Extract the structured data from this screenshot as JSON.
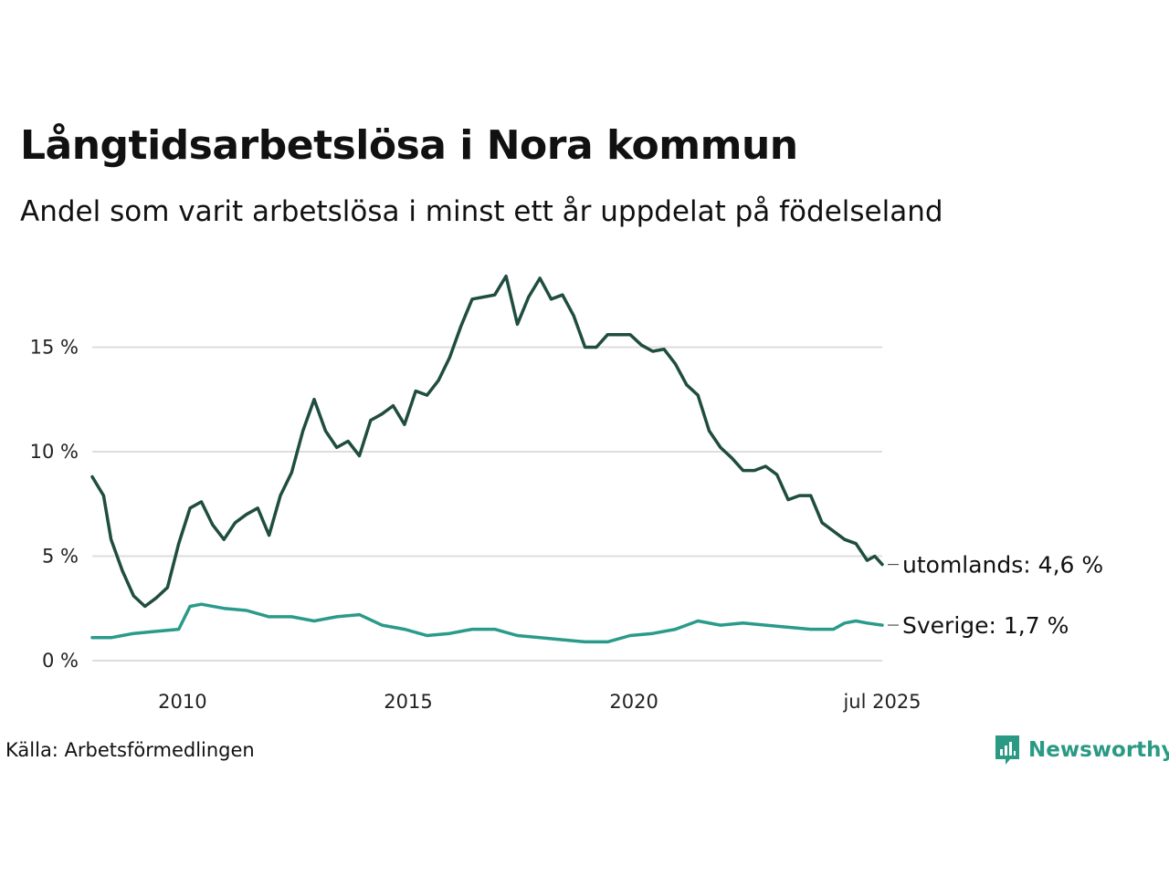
{
  "title": "Långtidsarbetslösa i Nora kommun",
  "subtitle": "Andel som varit arbetslösa i minst ett år uppdelat på födelseland",
  "source": "Källa: Arbetsförmedlingen",
  "brand": {
    "name": "Newsworthy",
    "icon": "newsworthy-logo-icon",
    "color": "#2a9a84"
  },
  "chart_data": {
    "type": "line",
    "x_start": "2008-01",
    "x_end": "2025-07",
    "x_ticks": [
      {
        "value": "2010-01",
        "label": "2010"
      },
      {
        "value": "2015-01",
        "label": "2015"
      },
      {
        "value": "2020-01",
        "label": "2020"
      },
      {
        "value": "2025-07",
        "label": "jul 2025"
      }
    ],
    "y_ticks": [
      {
        "value": 0,
        "label": "0 %"
      },
      {
        "value": 5,
        "label": "5 %"
      },
      {
        "value": 10,
        "label": "10 %"
      },
      {
        "value": 15,
        "label": "15 %"
      }
    ],
    "ylim": [
      0,
      18.6
    ],
    "grid": true,
    "series": [
      {
        "name": "utomlands",
        "end_label": "utomlands: 4,6 %",
        "color": "#1f4d40",
        "points": [
          [
            "2008-01",
            8.8
          ],
          [
            "2008-04",
            7.9
          ],
          [
            "2008-06",
            5.8
          ],
          [
            "2008-09",
            4.3
          ],
          [
            "2008-12",
            3.1
          ],
          [
            "2009-03",
            2.6
          ],
          [
            "2009-06",
            3.0
          ],
          [
            "2009-09",
            3.5
          ],
          [
            "2009-12",
            5.6
          ],
          [
            "2010-03",
            7.3
          ],
          [
            "2010-06",
            7.6
          ],
          [
            "2010-09",
            6.5
          ],
          [
            "2010-12",
            5.8
          ],
          [
            "2011-03",
            6.6
          ],
          [
            "2011-06",
            7.0
          ],
          [
            "2011-09",
            7.3
          ],
          [
            "2011-12",
            6.0
          ],
          [
            "2012-03",
            7.9
          ],
          [
            "2012-06",
            9.0
          ],
          [
            "2012-09",
            11.0
          ],
          [
            "2012-12",
            12.5
          ],
          [
            "2013-03",
            11.0
          ],
          [
            "2013-06",
            10.2
          ],
          [
            "2013-09",
            10.5
          ],
          [
            "2013-12",
            9.8
          ],
          [
            "2014-03",
            11.5
          ],
          [
            "2014-06",
            11.8
          ],
          [
            "2014-09",
            12.2
          ],
          [
            "2014-12",
            11.3
          ],
          [
            "2015-03",
            12.9
          ],
          [
            "2015-06",
            12.7
          ],
          [
            "2015-09",
            13.4
          ],
          [
            "2015-12",
            14.5
          ],
          [
            "2016-03",
            16.0
          ],
          [
            "2016-06",
            17.3
          ],
          [
            "2016-09",
            17.4
          ],
          [
            "2016-12",
            17.5
          ],
          [
            "2017-03",
            18.4
          ],
          [
            "2017-06",
            16.1
          ],
          [
            "2017-09",
            17.4
          ],
          [
            "2017-12",
            18.3
          ],
          [
            "2018-03",
            17.3
          ],
          [
            "2018-06",
            17.5
          ],
          [
            "2018-09",
            16.5
          ],
          [
            "2018-12",
            15.0
          ],
          [
            "2019-03",
            15.0
          ],
          [
            "2019-06",
            15.6
          ],
          [
            "2019-09",
            15.6
          ],
          [
            "2019-12",
            15.6
          ],
          [
            "2020-03",
            15.1
          ],
          [
            "2020-06",
            14.8
          ],
          [
            "2020-09",
            14.9
          ],
          [
            "2020-12",
            14.2
          ],
          [
            "2021-03",
            13.2
          ],
          [
            "2021-06",
            12.7
          ],
          [
            "2021-09",
            11.0
          ],
          [
            "2021-12",
            10.2
          ],
          [
            "2022-03",
            9.7
          ],
          [
            "2022-06",
            9.1
          ],
          [
            "2022-09",
            9.1
          ],
          [
            "2022-12",
            9.3
          ],
          [
            "2023-03",
            8.9
          ],
          [
            "2023-06",
            7.7
          ],
          [
            "2023-09",
            7.9
          ],
          [
            "2023-12",
            7.9
          ],
          [
            "2024-03",
            6.6
          ],
          [
            "2024-06",
            6.2
          ],
          [
            "2024-09",
            5.8
          ],
          [
            "2024-12",
            5.6
          ],
          [
            "2025-03",
            4.8
          ],
          [
            "2025-05",
            5.0
          ],
          [
            "2025-07",
            4.6
          ]
        ]
      },
      {
        "name": "Sverige",
        "end_label": "Sverige: 1,7 %",
        "color": "#2a9a8a",
        "points": [
          [
            "2008-01",
            1.1
          ],
          [
            "2008-06",
            1.1
          ],
          [
            "2008-12",
            1.3
          ],
          [
            "2009-06",
            1.4
          ],
          [
            "2009-12",
            1.5
          ],
          [
            "2010-03",
            2.6
          ],
          [
            "2010-06",
            2.7
          ],
          [
            "2010-12",
            2.5
          ],
          [
            "2011-06",
            2.4
          ],
          [
            "2011-12",
            2.1
          ],
          [
            "2012-06",
            2.1
          ],
          [
            "2012-12",
            1.9
          ],
          [
            "2013-06",
            2.1
          ],
          [
            "2013-12",
            2.2
          ],
          [
            "2014-06",
            1.7
          ],
          [
            "2014-12",
            1.5
          ],
          [
            "2015-06",
            1.2
          ],
          [
            "2015-12",
            1.3
          ],
          [
            "2016-06",
            1.5
          ],
          [
            "2016-12",
            1.5
          ],
          [
            "2017-06",
            1.2
          ],
          [
            "2017-12",
            1.1
          ],
          [
            "2018-06",
            1.0
          ],
          [
            "2018-12",
            0.9
          ],
          [
            "2019-06",
            0.9
          ],
          [
            "2019-12",
            1.2
          ],
          [
            "2020-06",
            1.3
          ],
          [
            "2020-12",
            1.5
          ],
          [
            "2021-06",
            1.9
          ],
          [
            "2021-12",
            1.7
          ],
          [
            "2022-06",
            1.8
          ],
          [
            "2022-12",
            1.7
          ],
          [
            "2023-06",
            1.6
          ],
          [
            "2023-12",
            1.5
          ],
          [
            "2024-06",
            1.5
          ],
          [
            "2024-09",
            1.8
          ],
          [
            "2024-12",
            1.9
          ],
          [
            "2025-03",
            1.8
          ],
          [
            "2025-07",
            1.7
          ]
        ]
      }
    ]
  }
}
